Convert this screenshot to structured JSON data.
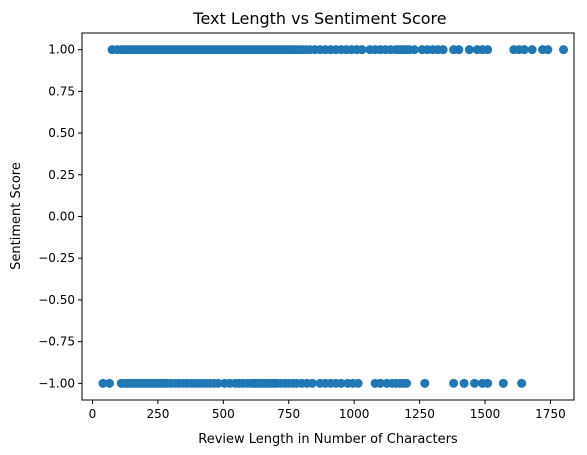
{
  "chart_data": {
    "type": "scatter",
    "title": "Text Length vs Sentiment Score",
    "xlabel": "Review Length in Number of Characters",
    "ylabel": "Sentiment Score",
    "xlim": [
      -40,
      1840
    ],
    "ylim": [
      -1.1,
      1.1
    ],
    "xticks": [
      0,
      250,
      500,
      750,
      1000,
      1250,
      1500,
      1750
    ],
    "xtick_labels": [
      "0",
      "250",
      "500",
      "750",
      "1000",
      "1250",
      "1500",
      "1750"
    ],
    "yticks": [
      1.0,
      0.75,
      0.5,
      0.25,
      0.0,
      -0.25,
      -0.5,
      -0.75,
      -1.0
    ],
    "ytick_labels": [
      "1.00",
      "0.75",
      "0.50",
      "0.25",
      "0.00",
      "−0.25",
      "−0.50",
      "−0.75",
      "−1.00"
    ],
    "grid": false,
    "color": "#1f77b4",
    "series": [
      {
        "points": [
          [
            75,
            1
          ],
          [
            95,
            1
          ],
          [
            110,
            1
          ],
          [
            120,
            1
          ],
          [
            130,
            1
          ],
          [
            140,
            1
          ],
          [
            150,
            1
          ],
          [
            160,
            1
          ],
          [
            170,
            1
          ],
          [
            180,
            1
          ],
          [
            190,
            1
          ],
          [
            200,
            1
          ],
          [
            210,
            1
          ],
          [
            220,
            1
          ],
          [
            230,
            1
          ],
          [
            240,
            1
          ],
          [
            250,
            1
          ],
          [
            260,
            1
          ],
          [
            270,
            1
          ],
          [
            280,
            1
          ],
          [
            290,
            1
          ],
          [
            300,
            1
          ],
          [
            310,
            1
          ],
          [
            320,
            1
          ],
          [
            330,
            1
          ],
          [
            340,
            1
          ],
          [
            350,
            1
          ],
          [
            360,
            1
          ],
          [
            370,
            1
          ],
          [
            380,
            1
          ],
          [
            390,
            1
          ],
          [
            400,
            1
          ],
          [
            410,
            1
          ],
          [
            420,
            1
          ],
          [
            430,
            1
          ],
          [
            440,
            1
          ],
          [
            450,
            1
          ],
          [
            460,
            1
          ],
          [
            470,
            1
          ],
          [
            480,
            1
          ],
          [
            490,
            1
          ],
          [
            500,
            1
          ],
          [
            510,
            1
          ],
          [
            520,
            1
          ],
          [
            530,
            1
          ],
          [
            540,
            1
          ],
          [
            550,
            1
          ],
          [
            560,
            1
          ],
          [
            570,
            1
          ],
          [
            580,
            1
          ],
          [
            590,
            1
          ],
          [
            600,
            1
          ],
          [
            610,
            1
          ],
          [
            620,
            1
          ],
          [
            630,
            1
          ],
          [
            640,
            1
          ],
          [
            650,
            1
          ],
          [
            660,
            1
          ],
          [
            670,
            1
          ],
          [
            680,
            1
          ],
          [
            690,
            1
          ],
          [
            700,
            1
          ],
          [
            710,
            1
          ],
          [
            720,
            1
          ],
          [
            730,
            1
          ],
          [
            740,
            1
          ],
          [
            750,
            1
          ],
          [
            760,
            1
          ],
          [
            770,
            1
          ],
          [
            780,
            1
          ],
          [
            790,
            1
          ],
          [
            800,
            1
          ],
          [
            815,
            1
          ],
          [
            830,
            1
          ],
          [
            850,
            1
          ],
          [
            870,
            1
          ],
          [
            890,
            1
          ],
          [
            910,
            1
          ],
          [
            930,
            1
          ],
          [
            950,
            1
          ],
          [
            970,
            1
          ],
          [
            990,
            1
          ],
          [
            1010,
            1
          ],
          [
            1030,
            1
          ],
          [
            1060,
            1
          ],
          [
            1080,
            1
          ],
          [
            1100,
            1
          ],
          [
            1120,
            1
          ],
          [
            1140,
            1
          ],
          [
            1160,
            1
          ],
          [
            1170,
            1
          ],
          [
            1180,
            1
          ],
          [
            1190,
            1
          ],
          [
            1200,
            1
          ],
          [
            1210,
            1
          ],
          [
            1230,
            1
          ],
          [
            1260,
            1
          ],
          [
            1280,
            1
          ],
          [
            1300,
            1
          ],
          [
            1320,
            1
          ],
          [
            1340,
            1
          ],
          [
            1380,
            1
          ],
          [
            1400,
            1
          ],
          [
            1440,
            1
          ],
          [
            1470,
            1
          ],
          [
            1490,
            1
          ],
          [
            1510,
            1
          ],
          [
            1610,
            1
          ],
          [
            1630,
            1
          ],
          [
            1650,
            1
          ],
          [
            1680,
            1
          ],
          [
            1720,
            1
          ],
          [
            1740,
            1
          ],
          [
            1800,
            1
          ]
        ]
      },
      {
        "points": [
          [
            40,
            -1
          ],
          [
            65,
            -1
          ],
          [
            110,
            -1
          ],
          [
            125,
            -1
          ],
          [
            135,
            -1
          ],
          [
            145,
            -1
          ],
          [
            155,
            -1
          ],
          [
            165,
            -1
          ],
          [
            175,
            -1
          ],
          [
            185,
            -1
          ],
          [
            195,
            -1
          ],
          [
            205,
            -1
          ],
          [
            215,
            -1
          ],
          [
            225,
            -1
          ],
          [
            235,
            -1
          ],
          [
            245,
            -1
          ],
          [
            255,
            -1
          ],
          [
            265,
            -1
          ],
          [
            275,
            -1
          ],
          [
            285,
            -1
          ],
          [
            300,
            -1
          ],
          [
            315,
            -1
          ],
          [
            330,
            -1
          ],
          [
            345,
            -1
          ],
          [
            360,
            -1
          ],
          [
            375,
            -1
          ],
          [
            390,
            -1
          ],
          [
            405,
            -1
          ],
          [
            420,
            -1
          ],
          [
            435,
            -1
          ],
          [
            450,
            -1
          ],
          [
            465,
            -1
          ],
          [
            480,
            -1
          ],
          [
            505,
            -1
          ],
          [
            525,
            -1
          ],
          [
            545,
            -1
          ],
          [
            560,
            -1
          ],
          [
            575,
            -1
          ],
          [
            590,
            -1
          ],
          [
            605,
            -1
          ],
          [
            615,
            -1
          ],
          [
            625,
            -1
          ],
          [
            635,
            -1
          ],
          [
            645,
            -1
          ],
          [
            655,
            -1
          ],
          [
            665,
            -1
          ],
          [
            675,
            -1
          ],
          [
            685,
            -1
          ],
          [
            695,
            -1
          ],
          [
            705,
            -1
          ],
          [
            720,
            -1
          ],
          [
            735,
            -1
          ],
          [
            750,
            -1
          ],
          [
            765,
            -1
          ],
          [
            780,
            -1
          ],
          [
            800,
            -1
          ],
          [
            820,
            -1
          ],
          [
            840,
            -1
          ],
          [
            870,
            -1
          ],
          [
            890,
            -1
          ],
          [
            910,
            -1
          ],
          [
            930,
            -1
          ],
          [
            950,
            -1
          ],
          [
            975,
            -1
          ],
          [
            995,
            -1
          ],
          [
            1015,
            -1
          ],
          [
            1080,
            -1
          ],
          [
            1100,
            -1
          ],
          [
            1125,
            -1
          ],
          [
            1145,
            -1
          ],
          [
            1160,
            -1
          ],
          [
            1175,
            -1
          ],
          [
            1190,
            -1
          ],
          [
            1200,
            -1
          ],
          [
            1270,
            -1
          ],
          [
            1380,
            -1
          ],
          [
            1420,
            -1
          ],
          [
            1460,
            -1
          ],
          [
            1490,
            -1
          ],
          [
            1510,
            -1
          ],
          [
            1570,
            -1
          ],
          [
            1640,
            -1
          ]
        ]
      }
    ]
  }
}
